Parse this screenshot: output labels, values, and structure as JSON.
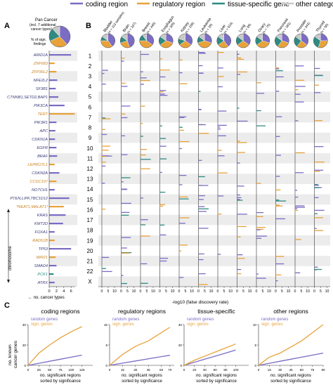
{
  "legend": {
    "items": [
      {
        "label": "coding region",
        "color": "#7b6cc4"
      },
      {
        "label": "regulatory region",
        "color": "#e8a23a"
      },
      {
        "label": "tissue-specific gene",
        "color": "#2f8a82"
      },
      {
        "label": "other category",
        "color": "#c9c9c9"
      }
    ]
  },
  "panelA": {
    "letter": "A",
    "pie_title": "Pan Cancer",
    "pie_subtitle_1": "(incl. 7 additional",
    "pie_subtitle_2": "cancer types)",
    "pie_caption_1": "% of sign.",
    "pie_caption_2": "findings",
    "axis_label": "no. cancer types",
    "ticks": [
      "0",
      "2",
      "4",
      "6"
    ],
    "chromosome_label": "chromosome",
    "genes": [
      {
        "label": "ARID1A",
        "value": 6.0,
        "color": "#7b6cc4",
        "italic": true
      },
      {
        "label": "ZNF683",
        "value": 1.5,
        "color": "#e8a23a",
        "italic": true
      },
      {
        "label": "ZFP36L2",
        "value": 2.0,
        "color": "#e8a23a",
        "italic": true
      },
      {
        "label": "NFE2L2",
        "value": 2.2,
        "color": "#7b6cc4",
        "italic": true
      },
      {
        "label": "SF3B1",
        "value": 1.8,
        "color": "#7b6cc4",
        "italic": true
      },
      {
        "label": "CTNNB1,SETD2,BAP1",
        "value": 2.5,
        "color": "#7b6cc4",
        "italic": true
      },
      {
        "label": "PIK3CA",
        "value": 4.2,
        "color": "#7b6cc4",
        "italic": true
      },
      {
        "label": "TERT",
        "value": 7.0,
        "color": "#e8a23a",
        "italic": true
      },
      {
        "label": "PIK3R1",
        "value": 2.0,
        "color": "#7b6cc4",
        "italic": true
      },
      {
        "label": "APC",
        "value": 1.7,
        "color": "#7b6cc4",
        "italic": true
      },
      {
        "label": "CDKN1A",
        "value": 1.6,
        "color": "#7b6cc4",
        "italic": true
      },
      {
        "label": "EGFR",
        "value": 2.0,
        "color": "#7b6cc4",
        "italic": true
      },
      {
        "label": "BRAF",
        "value": 2.2,
        "color": "#7b6cc4",
        "italic": true
      },
      {
        "label": "LEPROTL1",
        "value": 1.5,
        "color": "#e8a23a",
        "italic": true
      },
      {
        "label": "CDKN2A",
        "value": 2.8,
        "color": "#7b6cc4",
        "italic": true
      },
      {
        "label": "CCDC107",
        "value": 2.0,
        "color": "#e8a23a",
        "italic": true
      },
      {
        "label": "NOTCH1",
        "value": 1.5,
        "color": "#7b6cc4",
        "italic": true
      },
      {
        "label": "PTEN,LIPF,TBC1D12",
        "value": 5.5,
        "color": "#7b6cc4",
        "italic": true
      },
      {
        "label": "*NEAT1,MALAT1*",
        "value": 4.0,
        "color": "#e8a23a",
        "italic": true
      },
      {
        "label": "KRAS",
        "value": 4.5,
        "color": "#7b6cc4",
        "italic": true
      },
      {
        "label": "KMT2D",
        "value": 3.8,
        "color": "#7b6cc4",
        "italic": true
      },
      {
        "label": "FOXA1",
        "value": 1.5,
        "color": "#7b6cc4",
        "italic": true
      },
      {
        "label": "RAD51B",
        "value": 1.5,
        "color": "#e8a23a",
        "italic": true
      },
      {
        "label": "TP53",
        "value": 6.0,
        "color": "#7b6cc4",
        "italic": true
      },
      {
        "label": "MIR21",
        "value": 1.8,
        "color": "#e8a23a",
        "italic": true
      },
      {
        "label": "SMAD4",
        "value": 2.0,
        "color": "#7b6cc4",
        "italic": true
      },
      {
        "label": "PCK1",
        "value": 1.2,
        "color": "#2f8a82",
        "italic": true
      },
      {
        "label": "ATRX",
        "value": 1.5,
        "color": "#7b6cc4",
        "italic": true
      }
    ]
  },
  "chromosomes": [
    "1",
    "2",
    "3",
    "4",
    "5",
    "6",
    "7",
    "8",
    "9",
    "10",
    "11",
    "12",
    "13",
    "14",
    "15",
    "16",
    "17",
    "18",
    "19",
    "20",
    "21",
    "22",
    "X"
  ],
  "panelB": {
    "letter": "B",
    "axis_label": "-log10 (false discovery rate)",
    "ticks": [
      "0",
      "5",
      "10"
    ],
    "cancers": [
      {
        "name": "Bladder",
        "n": "(n = 113 samples)"
      },
      {
        "name": "Brain",
        "n": "(n = 337)"
      },
      {
        "name": "Breast",
        "n": "(n = 440)"
      },
      {
        "name": "Esophagus",
        "n": "(n = 205)"
      },
      {
        "name": "Kidney",
        "n": "(n = 156)"
      },
      {
        "name": "Leukemia",
        "n": "(n = 39)"
      },
      {
        "name": "Liver",
        "n": "(n = 524)"
      },
      {
        "name": "Lung",
        "n": "(n = 89)"
      },
      {
        "name": "Ovary",
        "n": "(n = 75)"
      },
      {
        "name": "Pancreas",
        "n": "(n = 281)"
      },
      {
        "name": "Prostate",
        "n": "(n = 341)"
      },
      {
        "name": "Thyroid",
        "n": "(n = 56)"
      }
    ]
  },
  "panelC": {
    "letter": "C",
    "ylabel_1": "no. known",
    "ylabel_2": "cancer genes",
    "xlabel_1": "no. significant regions",
    "xlabel_2": "sorted by significance",
    "legend_random": "random genes",
    "legend_sign": "sign. genes"
  },
  "chart_data": [
    {
      "type": "bar",
      "title": "Pan Cancer",
      "xlabel": "no. cancer types",
      "xlim": [
        0,
        7
      ],
      "categories": [
        "ARID1A",
        "ZNF683",
        "ZFP36L2",
        "NFE2L2",
        "SF3B1",
        "CTNNB1,SETD2,BAP1",
        "PIK3CA",
        "TERT",
        "PIK3R1",
        "APC",
        "CDKN1A",
        "EGFR",
        "BRAF",
        "LEPROTL1",
        "CDKN2A",
        "CCDC107",
        "NOTCH1",
        "PTEN,LIPF,TBC1D12",
        "*NEAT1,MALAT1*",
        "KRAS",
        "KMT2D",
        "FOXA1",
        "RAD51B",
        "TP53",
        "MIR21",
        "SMAD4",
        "PCK1",
        "ATRX"
      ],
      "values": [
        6.0,
        1.5,
        2.0,
        2.2,
        1.8,
        2.5,
        4.2,
        7.0,
        2.0,
        1.7,
        1.6,
        2.0,
        2.2,
        1.5,
        2.8,
        2.0,
        1.5,
        5.5,
        4.0,
        4.5,
        3.8,
        1.5,
        1.5,
        6.0,
        1.8,
        2.0,
        1.2,
        1.5
      ]
    },
    {
      "type": "pie",
      "title": "Pan Cancer",
      "categories": [
        "coding region",
        "regulatory region",
        "tissue-specific gene",
        "other category"
      ],
      "values": [
        38,
        30,
        20,
        12
      ]
    },
    {
      "type": "line",
      "title": "coding regions",
      "xlabel": "no. significant regions sorted by significance",
      "ylabel": "no. known cancer genes",
      "x": [
        0,
        25,
        50,
        75,
        100,
        125
      ],
      "xlim": [
        0,
        150
      ],
      "ylim": [
        0,
        40
      ],
      "series": [
        {
          "name": "random genes",
          "values": [
            0,
            2,
            4,
            6,
            8,
            10
          ]
        },
        {
          "name": "sign. genes",
          "values": [
            0,
            12,
            20,
            27,
            33,
            38
          ]
        }
      ]
    },
    {
      "type": "line",
      "title": "regulatory regions",
      "xlabel": "no. significant regions sorted by significance",
      "ylabel": "no. known cancer genes",
      "x": [
        0,
        15,
        30,
        45,
        60,
        70
      ],
      "xlim": [
        0,
        75
      ],
      "ylim": [
        0,
        15
      ],
      "series": [
        {
          "name": "random genes",
          "values": [
            0,
            0.8,
            1.6,
            2.4,
            3.2,
            3.7
          ]
        },
        {
          "name": "sign. genes",
          "values": [
            0,
            4,
            7,
            9,
            12,
            14
          ]
        }
      ]
    },
    {
      "type": "line",
      "title": "tissue-specific",
      "xlabel": "no. significant regions sorted by significance",
      "ylabel": "no. known cancer genes",
      "x": [
        0,
        20,
        40,
        60,
        80,
        100
      ],
      "xlim": [
        0,
        125
      ],
      "ylim": [
        0,
        40
      ],
      "series": [
        {
          "name": "random genes",
          "values": [
            0,
            3,
            6,
            9,
            12,
            15
          ]
        },
        {
          "name": "sign. genes",
          "values": [
            0,
            5,
            9,
            13,
            17,
            21
          ]
        }
      ]
    },
    {
      "type": "line",
      "title": "other regions",
      "xlabel": "no. significant regions sorted by significance",
      "ylabel": "no. known cancer genes",
      "x": [
        0,
        15,
        30,
        45,
        60,
        75,
        90
      ],
      "xlim": [
        0,
        90
      ],
      "ylim": [
        0,
        10
      ],
      "series": [
        {
          "name": "random genes",
          "values": [
            0,
            0.5,
            1.0,
            1.5,
            2.0,
            2.5,
            3.0
          ]
        },
        {
          "name": "sign. genes",
          "values": [
            0,
            2,
            3,
            4.5,
            6,
            8,
            10
          ]
        }
      ]
    }
  ]
}
